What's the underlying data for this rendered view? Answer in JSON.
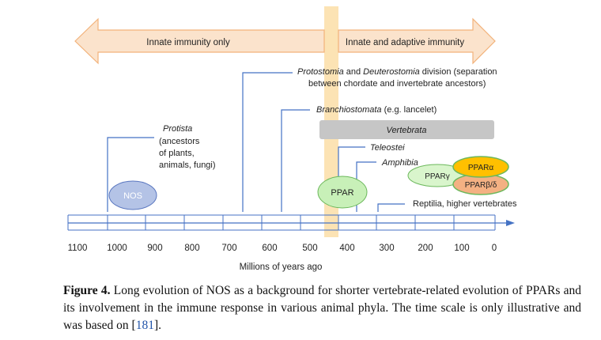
{
  "top_arrows": {
    "left_label": "Innate immunity only",
    "right_label": "Innate and adaptive immunity"
  },
  "annotations": {
    "protostomia_italic_1": "Protostomia",
    "protostomia_and": " and ",
    "protostomia_italic_2": "Deuterostomia",
    "protostomia_rest": " division (separation",
    "protostomia_line2": "between chordate and invertebrate ancestors)",
    "branchiostomata_italic": "Branchiostomata",
    "branchiostomata_rest": " (e.g. lancelet)",
    "vertebrata": "Vertebrata",
    "teleostei": "Teleostei",
    "amphibia": "Amphibia",
    "reptilia": "Reptilia, higher vertebrates",
    "protista_1": "Protista",
    "protista_2": "(ancestors",
    "protista_3": "of plants,",
    "protista_4": "animals, fungi)"
  },
  "nodes": {
    "nos": "NOS",
    "ppar": "PPAR",
    "ppar_gamma": "PPARγ",
    "ppar_alpha": "PPARα",
    "ppar_beta_delta": "PPARβ/δ"
  },
  "axis": {
    "ticks": [
      "1100",
      "1000",
      "900",
      "800",
      "700",
      "600",
      "500",
      "400",
      "300",
      "200",
      "100",
      "0"
    ],
    "label": "Millions of years ago"
  },
  "caption": {
    "label": "Figure 4.",
    "text": " Long evolution of NOS as a background for shorter vertebrate-related evolution of PPARs and its involvement in the immune response in various animal phyla.  The time scale is only illustrative and was based on [",
    "ref": "181",
    "end": "]."
  },
  "colors": {
    "arrow_fill": "#fbe3cc",
    "arrow_stroke": "#f2b27a",
    "highlight_band": "#fce3b4",
    "timeline_blue": "#4472c4",
    "vertebrata_bar": "#c6c6c6",
    "nos_fill": "#b4c3e6",
    "ppar_green": "#c8f0b8",
    "ppar_alpha": "#ffc000",
    "ppar_beta": "#f4b183"
  }
}
